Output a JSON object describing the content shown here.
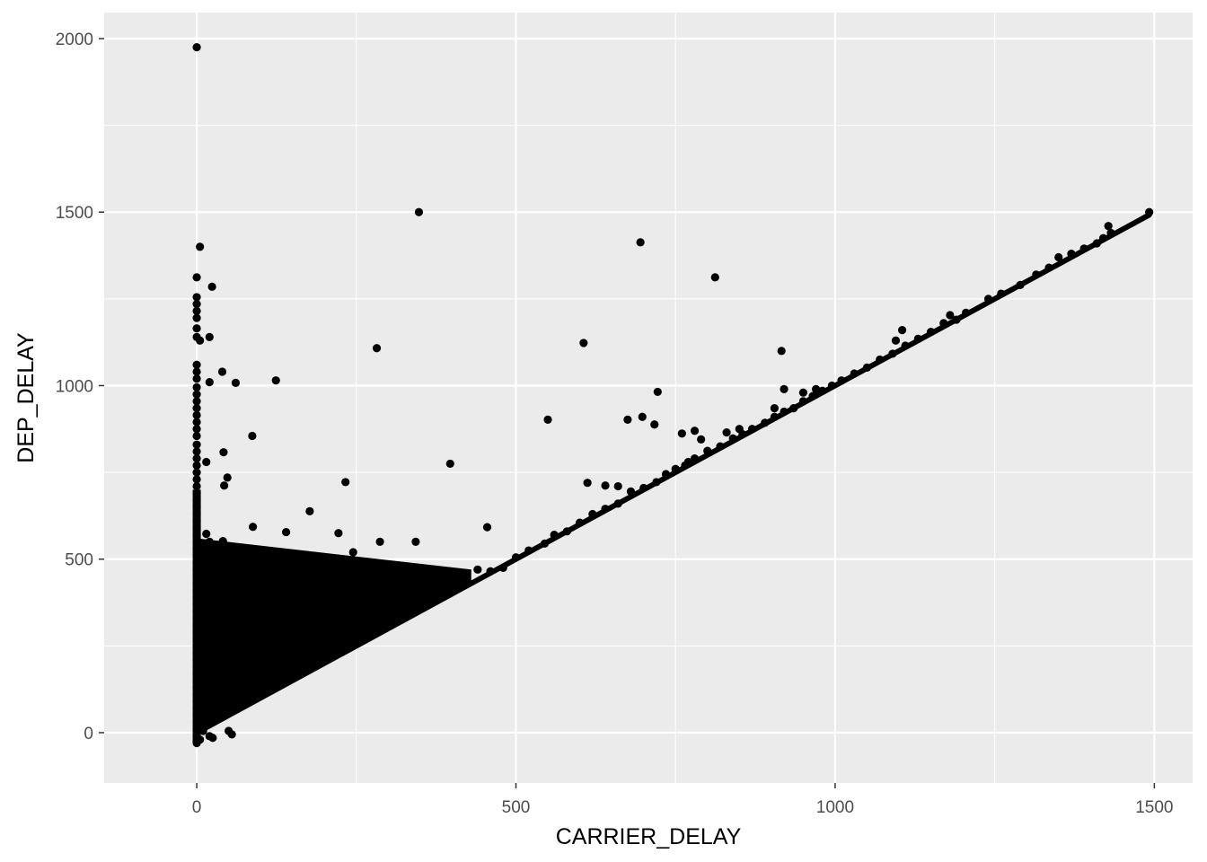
{
  "chart_data": {
    "type": "scatter",
    "title": "",
    "xlabel": "CARRIER_DELAY",
    "ylabel": "DEP_DELAY",
    "xlim": [
      -145,
      1560
    ],
    "ylim": [
      -145,
      2075
    ],
    "grid": true,
    "legend": "none",
    "x_ticks": [
      0,
      500,
      1000,
      1500
    ],
    "x_tick_labels": [
      "0",
      "500",
      "1000",
      "1500"
    ],
    "y_ticks": [
      0,
      500,
      1000,
      1500,
      2000
    ],
    "y_tick_labels": [
      "0",
      "500",
      "1000",
      "1500",
      "2000"
    ],
    "colors": {
      "panel_background": "#ebebeb",
      "grid_major": "#ffffff",
      "point": "#000000",
      "tick": "#333333"
    },
    "points": [
      [
        0,
        1975
      ],
      [
        348,
        1500
      ],
      [
        1492,
        1500
      ],
      [
        5,
        1400
      ],
      [
        695,
        1413
      ],
      [
        812,
        1312
      ],
      [
        0,
        1312
      ],
      [
        24,
        1285
      ],
      [
        0,
        1255
      ],
      [
        0,
        1235
      ],
      [
        0,
        1215
      ],
      [
        0,
        1195
      ],
      [
        0,
        1165
      ],
      [
        0,
        1140
      ],
      [
        5,
        1130
      ],
      [
        20,
        1140
      ],
      [
        282,
        1108
      ],
      [
        606,
        1123
      ],
      [
        916,
        1100
      ],
      [
        0,
        1060
      ],
      [
        0,
        1040
      ],
      [
        40,
        1040
      ],
      [
        0,
        1020
      ],
      [
        20,
        1010
      ],
      [
        61,
        1008
      ],
      [
        124,
        1015
      ],
      [
        0,
        995
      ],
      [
        0,
        975
      ],
      [
        0,
        955
      ],
      [
        722,
        982
      ],
      [
        0,
        935
      ],
      [
        0,
        915
      ],
      [
        0,
        895
      ],
      [
        0,
        875
      ],
      [
        0,
        855
      ],
      [
        87,
        855
      ],
      [
        550,
        902
      ],
      [
        675,
        902
      ],
      [
        698,
        910
      ],
      [
        717,
        888
      ],
      [
        0,
        830
      ],
      [
        0,
        810
      ],
      [
        42,
        808
      ],
      [
        0,
        790
      ],
      [
        0,
        770
      ],
      [
        15,
        780
      ],
      [
        397,
        775
      ],
      [
        0,
        750
      ],
      [
        0,
        730
      ],
      [
        48,
        735
      ],
      [
        43,
        712
      ],
      [
        233,
        722
      ],
      [
        0,
        710
      ],
      [
        0,
        690
      ],
      [
        0,
        670
      ],
      [
        0,
        650
      ],
      [
        0,
        630
      ],
      [
        177,
        638
      ],
      [
        0,
        610
      ],
      [
        0,
        590
      ],
      [
        88,
        593
      ],
      [
        455,
        592
      ],
      [
        0,
        570
      ],
      [
        15,
        573
      ],
      [
        140,
        578
      ],
      [
        222,
        575
      ],
      [
        0,
        550
      ],
      [
        41,
        552
      ],
      [
        287,
        550
      ],
      [
        343,
        550
      ],
      [
        5,
        545
      ],
      [
        20,
        550
      ],
      [
        245,
        520
      ],
      [
        0,
        530
      ],
      [
        10,
        540
      ],
      [
        0,
        510
      ],
      [
        0,
        490
      ],
      [
        30,
        500
      ],
      [
        138,
        500
      ],
      [
        163,
        495
      ],
      [
        0,
        470
      ],
      [
        10,
        480
      ],
      [
        20,
        470
      ],
      [
        0,
        450
      ],
      [
        5,
        455
      ],
      [
        30,
        460
      ],
      [
        140,
        455
      ],
      [
        170,
        475
      ],
      [
        210,
        470
      ],
      [
        245,
        480
      ],
      [
        0,
        430
      ],
      [
        15,
        440
      ],
      [
        25,
        430
      ],
      [
        140,
        430
      ],
      [
        195,
        435
      ],
      [
        0,
        410
      ],
      [
        30,
        412
      ],
      [
        60,
        408
      ],
      [
        0,
        390
      ],
      [
        40,
        395
      ],
      [
        80,
        400
      ],
      [
        120,
        385
      ],
      [
        160,
        390
      ],
      [
        200,
        385
      ],
      [
        0,
        370
      ],
      [
        20,
        360
      ],
      [
        50,
        375
      ],
      [
        90,
        365
      ],
      [
        100,
        372
      ],
      [
        0,
        350
      ],
      [
        35,
        355
      ],
      [
        70,
        350
      ],
      [
        110,
        340
      ],
      [
        150,
        345
      ],
      [
        0,
        330
      ],
      [
        25,
        335
      ],
      [
        55,
        325
      ],
      [
        85,
        320
      ],
      [
        130,
        330
      ],
      [
        170,
        315
      ],
      [
        0,
        310
      ],
      [
        15,
        300
      ],
      [
        45,
        305
      ],
      [
        75,
        300
      ],
      [
        105,
        295
      ],
      [
        140,
        290
      ],
      [
        190,
        292
      ],
      [
        235,
        300
      ],
      [
        0,
        290
      ],
      [
        20,
        280
      ],
      [
        50,
        275
      ],
      [
        95,
        280
      ],
      [
        0,
        270
      ],
      [
        10,
        260
      ],
      [
        40,
        255
      ],
      [
        65,
        250
      ],
      [
        120,
        260
      ],
      [
        160,
        255
      ],
      [
        215,
        262
      ],
      [
        0,
        250
      ],
      [
        30,
        240
      ],
      [
        55,
        235
      ],
      [
        85,
        230
      ],
      [
        110,
        240
      ],
      [
        0,
        230
      ],
      [
        15,
        220
      ],
      [
        45,
        215
      ],
      [
        75,
        212
      ],
      [
        130,
        220
      ],
      [
        175,
        228
      ],
      [
        0,
        210
      ],
      [
        25,
        205
      ],
      [
        60,
        195
      ],
      [
        95,
        200
      ],
      [
        0,
        190
      ],
      [
        10,
        180
      ],
      [
        40,
        175
      ],
      [
        70,
        170
      ],
      [
        120,
        185
      ],
      [
        0,
        170
      ],
      [
        20,
        160
      ],
      [
        55,
        155
      ],
      [
        85,
        152
      ],
      [
        0,
        150
      ],
      [
        30,
        140
      ],
      [
        65,
        135
      ],
      [
        100,
        140
      ],
      [
        0,
        130
      ],
      [
        10,
        120
      ],
      [
        40,
        115
      ],
      [
        75,
        118
      ],
      [
        0,
        110
      ],
      [
        25,
        100
      ],
      [
        55,
        98
      ],
      [
        0,
        90
      ],
      [
        15,
        80
      ],
      [
        45,
        82
      ],
      [
        0,
        70
      ],
      [
        30,
        60
      ],
      [
        0,
        50
      ],
      [
        10,
        40
      ],
      [
        35,
        44
      ],
      [
        0,
        30
      ],
      [
        20,
        25
      ],
      [
        0,
        10
      ],
      [
        10,
        5
      ],
      [
        0,
        -10
      ],
      [
        0,
        -25
      ],
      [
        0,
        -30
      ],
      [
        5,
        -20
      ],
      [
        20,
        -10
      ],
      [
        25,
        -15
      ],
      [
        50,
        5
      ],
      [
        55,
        -5
      ],
      [
        300,
        350
      ],
      [
        330,
        380
      ],
      [
        305,
        370
      ],
      [
        380,
        400
      ],
      [
        400,
        430
      ],
      [
        420,
        445
      ],
      [
        440,
        470
      ],
      [
        460,
        465
      ],
      [
        480,
        475
      ],
      [
        500,
        505
      ],
      [
        520,
        525
      ],
      [
        545,
        545
      ],
      [
        560,
        570
      ],
      [
        580,
        580
      ],
      [
        600,
        605
      ],
      [
        620,
        630
      ],
      [
        640,
        645
      ],
      [
        660,
        660
      ],
      [
        680,
        695
      ],
      [
        700,
        705
      ],
      [
        720,
        722
      ],
      [
        735,
        745
      ],
      [
        750,
        760
      ],
      [
        765,
        770
      ],
      [
        780,
        790
      ],
      [
        800,
        812
      ],
      [
        820,
        825
      ],
      [
        840,
        848
      ],
      [
        855,
        860
      ],
      [
        870,
        875
      ],
      [
        890,
        893
      ],
      [
        905,
        910
      ],
      [
        920,
        925
      ],
      [
        935,
        935
      ],
      [
        950,
        955
      ],
      [
        965,
        970
      ],
      [
        980,
        985
      ],
      [
        995,
        1000
      ],
      [
        1010,
        1015
      ],
      [
        1030,
        1035
      ],
      [
        1050,
        1052
      ],
      [
        1070,
        1075
      ],
      [
        1090,
        1092
      ],
      [
        1110,
        1115
      ],
      [
        1130,
        1135
      ],
      [
        1150,
        1155
      ],
      [
        1170,
        1180
      ],
      [
        1190,
        1190
      ],
      [
        1205,
        1210
      ],
      [
        1240,
        1250
      ],
      [
        1260,
        1265
      ],
      [
        1290,
        1290
      ],
      [
        1315,
        1320
      ],
      [
        1335,
        1340
      ],
      [
        1350,
        1370
      ],
      [
        1370,
        1380
      ],
      [
        1390,
        1395
      ],
      [
        1410,
        1410
      ],
      [
        1420,
        1425
      ],
      [
        1428,
        1460
      ],
      [
        1432,
        1440
      ],
      [
        760,
        862
      ],
      [
        780,
        870
      ],
      [
        790,
        845
      ],
      [
        830,
        865
      ],
      [
        660,
        710
      ],
      [
        612,
        720
      ],
      [
        640,
        712
      ],
      [
        770,
        780
      ],
      [
        1105,
        1160
      ],
      [
        1180,
        1203
      ],
      [
        1095,
        1130
      ],
      [
        920,
        990
      ],
      [
        905,
        935
      ],
      [
        850,
        875
      ],
      [
        950,
        980
      ],
      [
        970,
        990
      ]
    ],
    "diagonal_band": {
      "lower_edge": [
        [
          0,
          0
        ],
        [
          1492,
          1492
        ]
      ],
      "dense_wedge": [
        [
          0,
          0
        ],
        [
          430,
          430
        ],
        [
          430,
          470
        ],
        [
          0,
          560
        ]
      ]
    }
  }
}
